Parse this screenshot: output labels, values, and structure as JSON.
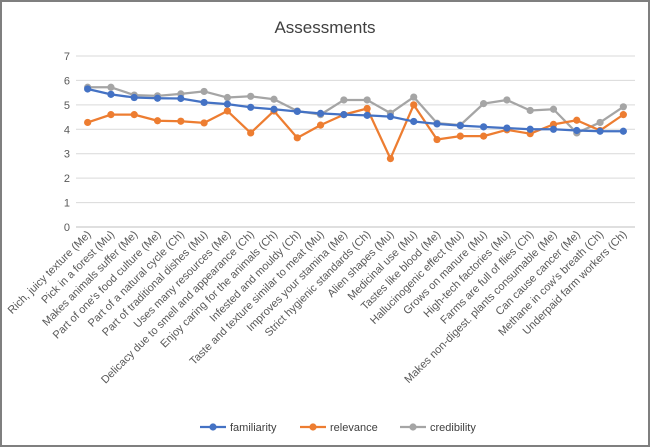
{
  "chart_data": {
    "type": "line",
    "title": "Assessments",
    "xlabel": "",
    "ylabel": "",
    "ylim": [
      0,
      7
    ],
    "yticks": [
      "0",
      "1",
      "2",
      "3",
      "4",
      "5",
      "6",
      "7"
    ],
    "grid": true,
    "legend": "bottom",
    "categories": [
      "Rich, juicy texture (Me)",
      "Pick in a forest (Mu)",
      "Makes animals suffer (Me)",
      "Part of one's food culture (Me)",
      "Part of a natural cycle (Ch)",
      "Part of traditional dishes (Mu)",
      "Uses many resources (Me)",
      "Delicacy due to smell and appearance (Ch)",
      "Enjoy caring for the animals (Ch)",
      "Infested and mouldy (Ch)",
      "Taste and texture similar to meat (Mu)",
      "Improves your stamina (Me)",
      "Strict hygienic standards (Ch)",
      "Alien shapes (Mu)",
      "Medicinal use (Mu)",
      "Tastes like blood (Me)",
      "Hallucinogenic effect (Mu)",
      "Grows on manure (Mu)",
      "High-tech factories (Mu)",
      "Farms are full of flies (Ch)",
      "Makes non-digest. plants consumable (Me)",
      "Can cause cancer (Me)",
      "Methane in cow's breath (Ch)",
      "Underpaid farm workers (Ch)"
    ],
    "series": [
      {
        "name": "familiarity",
        "color": "#4472c4",
        "values": [
          5.65,
          5.43,
          5.3,
          5.27,
          5.26,
          5.1,
          5.03,
          4.9,
          4.82,
          4.73,
          4.65,
          4.6,
          4.57,
          4.52,
          4.32,
          4.22,
          4.15,
          4.1,
          4.05,
          4.0,
          4.0,
          3.95,
          3.92,
          3.92
        ]
      },
      {
        "name": "relevance",
        "color": "#ed7d31",
        "values": [
          4.28,
          4.6,
          4.6,
          4.35,
          4.33,
          4.26,
          4.75,
          3.85,
          4.75,
          3.65,
          4.17,
          4.6,
          4.85,
          2.8,
          5.0,
          3.58,
          3.72,
          3.72,
          3.98,
          3.82,
          4.2,
          4.37,
          3.95,
          4.6
        ]
      },
      {
        "name": "credibility",
        "color": "#a5a5a5",
        "values": [
          5.72,
          5.72,
          5.4,
          5.37,
          5.45,
          5.55,
          5.3,
          5.35,
          5.23,
          4.75,
          4.6,
          5.2,
          5.2,
          4.66,
          5.32,
          4.25,
          4.17,
          5.05,
          5.2,
          4.77,
          4.82,
          3.85,
          4.28,
          4.92
        ]
      }
    ]
  }
}
